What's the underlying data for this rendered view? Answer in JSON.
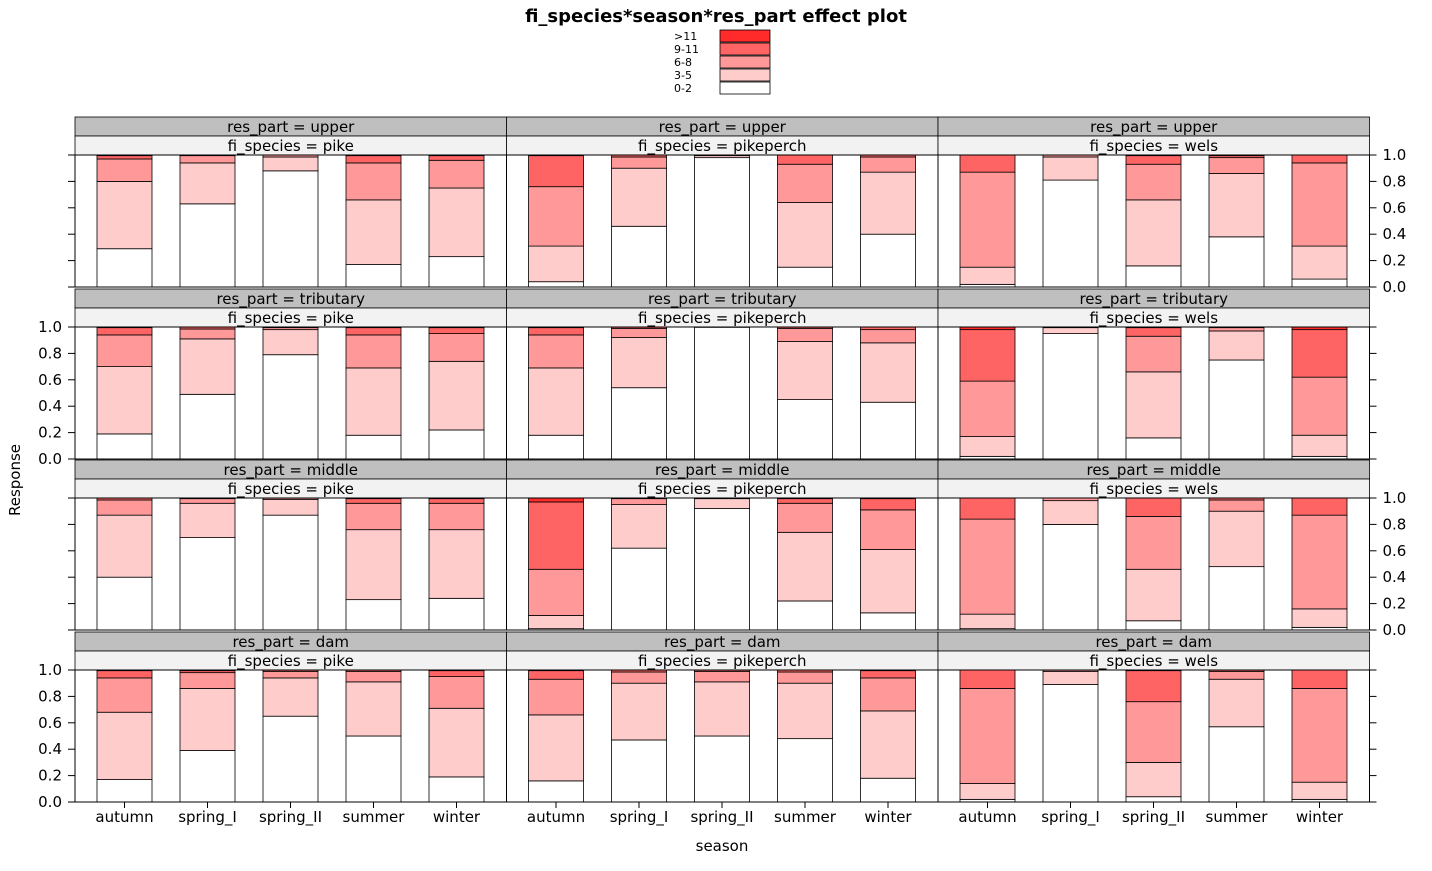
{
  "chart_data": {
    "type": "bar",
    "title": "fi_species*season*res_part effect plot",
    "xlabel": "season",
    "ylabel": "Response",
    "ylim": [
      0,
      1
    ],
    "yticks": [
      "0.0",
      "0.2",
      "0.4",
      "0.6",
      "0.8",
      "1.0"
    ],
    "categories": [
      "autumn",
      "spring_I",
      "spring_II",
      "summer",
      "winter"
    ],
    "legend": {
      "placement": "top",
      "entries": [
        {
          "label": ">11",
          "color": "#ff2a2a"
        },
        {
          "label": "9-11",
          "color": "#ff6464"
        },
        {
          "label": "6-8",
          "color": "#ff9999"
        },
        {
          "label": "3-5",
          "color": "#ffcccc"
        },
        {
          "label": "0-2",
          "color": "#ffffff"
        }
      ]
    },
    "stack_order": [
      "0-2",
      "3-5",
      "6-8",
      "9-11",
      ">11"
    ],
    "strip_colors": {
      "res_part": "#bfbfbf",
      "fi_species": "#f2f2f2"
    },
    "panels": [
      {
        "res_part": "res_part = upper",
        "fi_species": "fi_species = pike",
        "bounds": [
          [
            0.29,
            0.8,
            0.97,
            0.995
          ],
          [
            0.63,
            0.94,
            0.995,
            1.0
          ],
          [
            0.88,
            0.985,
            1.0,
            1.0
          ],
          [
            0.17,
            0.66,
            0.94,
            0.995
          ],
          [
            0.23,
            0.75,
            0.96,
            0.995
          ]
        ]
      },
      {
        "res_part": "res_part = upper",
        "fi_species": "fi_species = pikeperch",
        "bounds": [
          [
            0.04,
            0.31,
            0.76,
            0.995
          ],
          [
            0.46,
            0.9,
            0.985,
            1.0
          ],
          [
            0.98,
            0.995,
            1.0,
            1.0
          ],
          [
            0.15,
            0.64,
            0.93,
            1.0
          ],
          [
            0.4,
            0.87,
            0.985,
            1.0
          ]
        ]
      },
      {
        "res_part": "res_part = upper",
        "fi_species": "fi_species = wels",
        "bounds": [
          [
            0.02,
            0.15,
            0.87,
            1.0
          ],
          [
            0.81,
            0.985,
            1.0,
            1.0
          ],
          [
            0.16,
            0.66,
            0.93,
            0.995
          ],
          [
            0.38,
            0.86,
            0.98,
            0.995
          ],
          [
            0.06,
            0.31,
            0.94,
            1.0
          ]
        ]
      },
      {
        "res_part": "res_part = tributary",
        "fi_species": "fi_species = pike",
        "bounds": [
          [
            0.19,
            0.7,
            0.94,
            0.995
          ],
          [
            0.49,
            0.91,
            0.985,
            1.0
          ],
          [
            0.79,
            0.98,
            0.995,
            1.0
          ],
          [
            0.18,
            0.69,
            0.94,
            0.995
          ],
          [
            0.22,
            0.74,
            0.95,
            0.995
          ]
        ]
      },
      {
        "res_part": "res_part = tributary",
        "fi_species": "fi_species = pikeperch",
        "bounds": [
          [
            0.18,
            0.69,
            0.94,
            0.995
          ],
          [
            0.54,
            0.92,
            0.99,
            1.0
          ],
          [
            0.998,
            1.0,
            1.0,
            1.0
          ],
          [
            0.45,
            0.89,
            0.99,
            1.0
          ],
          [
            0.43,
            0.88,
            0.98,
            1.0
          ]
        ]
      },
      {
        "res_part": "res_part = tributary",
        "fi_species": "fi_species = wels",
        "bounds": [
          [
            0.02,
            0.17,
            0.59,
            0.98
          ],
          [
            0.95,
            0.995,
            1.0,
            1.0
          ],
          [
            0.16,
            0.66,
            0.93,
            0.995
          ],
          [
            0.75,
            0.97,
            0.995,
            1.0
          ],
          [
            0.02,
            0.18,
            0.62,
            0.98
          ]
        ]
      },
      {
        "res_part": "res_part = middle",
        "fi_species": "fi_species = pike",
        "bounds": [
          [
            0.4,
            0.87,
            0.985,
            1.0
          ],
          [
            0.7,
            0.96,
            0.995,
            1.0
          ],
          [
            0.87,
            0.99,
            1.0,
            1.0
          ],
          [
            0.23,
            0.76,
            0.96,
            0.995
          ],
          [
            0.24,
            0.76,
            0.96,
            0.995
          ]
        ]
      },
      {
        "res_part": "res_part = middle",
        "fi_species": "fi_species = pikeperch",
        "bounds": [
          [
            0.01,
            0.11,
            0.46,
            0.97
          ],
          [
            0.62,
            0.95,
            0.995,
            1.0
          ],
          [
            0.92,
            0.995,
            1.0,
            1.0
          ],
          [
            0.22,
            0.74,
            0.96,
            0.995
          ],
          [
            0.13,
            0.61,
            0.91,
            0.995
          ]
        ]
      },
      {
        "res_part": "res_part = middle",
        "fi_species": "fi_species = wels",
        "bounds": [
          [
            0.01,
            0.12,
            0.84,
            1.0
          ],
          [
            0.8,
            0.98,
            1.0,
            1.0
          ],
          [
            0.07,
            0.46,
            0.86,
            1.0
          ],
          [
            0.48,
            0.9,
            0.985,
            1.0
          ],
          [
            0.02,
            0.16,
            0.87,
            1.0
          ]
        ]
      },
      {
        "res_part": "res_part = dam",
        "fi_species": "fi_species = pike",
        "bounds": [
          [
            0.17,
            0.68,
            0.94,
            0.995
          ],
          [
            0.39,
            0.86,
            0.98,
            0.995
          ],
          [
            0.65,
            0.94,
            0.99,
            1.0
          ],
          [
            0.5,
            0.91,
            0.99,
            1.0
          ],
          [
            0.19,
            0.71,
            0.95,
            0.995
          ]
        ]
      },
      {
        "res_part": "res_part = dam",
        "fi_species": "fi_species = pikeperch",
        "bounds": [
          [
            0.16,
            0.66,
            0.93,
            0.995
          ],
          [
            0.47,
            0.9,
            0.985,
            1.0
          ],
          [
            0.5,
            0.91,
            0.99,
            1.0
          ],
          [
            0.48,
            0.9,
            0.985,
            1.0
          ],
          [
            0.18,
            0.69,
            0.94,
            0.995
          ]
        ]
      },
      {
        "res_part": "res_part = dam",
        "fi_species": "fi_species = wels",
        "bounds": [
          [
            0.02,
            0.14,
            0.86,
            1.0
          ],
          [
            0.89,
            0.99,
            1.0,
            1.0
          ],
          [
            0.04,
            0.3,
            0.76,
            0.995
          ],
          [
            0.57,
            0.93,
            0.99,
            1.0
          ],
          [
            0.02,
            0.15,
            0.86,
            1.0
          ]
        ]
      }
    ]
  }
}
